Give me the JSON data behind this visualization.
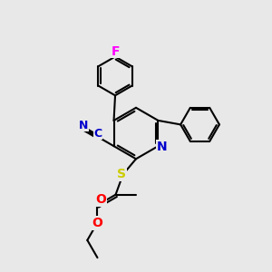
{
  "bg_color": "#e8e8e8",
  "line_color": "#000000",
  "bond_lw": 1.5,
  "atom_colors": {
    "N": "#0000cc",
    "O": "#ff0000",
    "S": "#cccc00",
    "F": "#ff00ff",
    "C_nitrile": "#0000cc"
  },
  "font_size": 10,
  "fig_size": [
    3.0,
    3.0
  ],
  "dpi": 100,
  "xlim": [
    0,
    10
  ],
  "ylim": [
    0,
    10
  ]
}
